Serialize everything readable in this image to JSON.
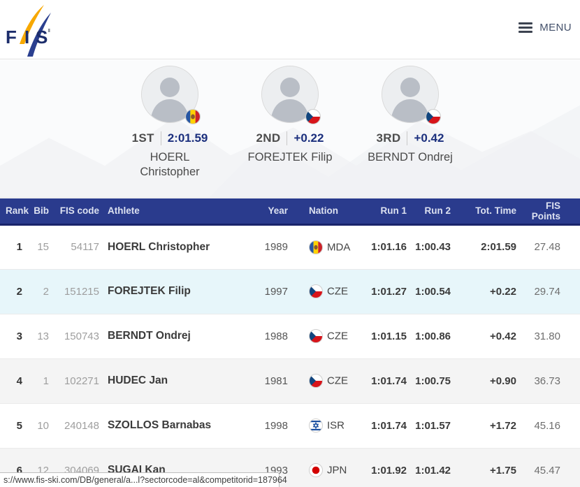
{
  "navbar": {
    "logo_text": "FIS",
    "menu_label": "MENU",
    "menu_icon": "hamburger-menu-icon"
  },
  "podium": [
    {
      "place": "1ST",
      "result": "2:01.59",
      "name_line1": "HOERL",
      "name_line2": "Christopher",
      "nation": "MDA"
    },
    {
      "place": "2ND",
      "result": "+0.22",
      "name_line1": "FOREJTEK Filip",
      "name_line2": "",
      "nation": "CZE"
    },
    {
      "place": "3RD",
      "result": "+0.42",
      "name_line1": "BERNDT Ondrej",
      "name_line2": "",
      "nation": "CZE"
    }
  ],
  "table": {
    "columns": [
      {
        "key": "rank",
        "label": "Rank"
      },
      {
        "key": "bib",
        "label": "Bib"
      },
      {
        "key": "fis_code",
        "label": "FIS code"
      },
      {
        "key": "athlete",
        "label": "Athlete"
      },
      {
        "key": "year",
        "label": "Year"
      },
      {
        "key": "nation",
        "label": "Nation"
      },
      {
        "key": "run1",
        "label": "Run 1"
      },
      {
        "key": "run2",
        "label": "Run 2"
      },
      {
        "key": "tot_time",
        "label": "Tot. Time"
      },
      {
        "key": "points",
        "label": "FIS Points"
      }
    ],
    "rows": [
      {
        "rank": "1",
        "bib": "15",
        "fis_code": "54117",
        "athlete": "HOERL Christopher",
        "year": "1989",
        "nation": "MDA",
        "run1": "1:01.16",
        "run2": "1:00.43",
        "tot_time": "2:01.59",
        "points": "27.48",
        "highlight": false
      },
      {
        "rank": "2",
        "bib": "2",
        "fis_code": "151215",
        "athlete": "FOREJTEK Filip",
        "year": "1997",
        "nation": "CZE",
        "run1": "1:01.27",
        "run2": "1:00.54",
        "tot_time": "+0.22",
        "points": "29.74",
        "highlight": true
      },
      {
        "rank": "3",
        "bib": "13",
        "fis_code": "150743",
        "athlete": "BERNDT Ondrej",
        "year": "1988",
        "nation": "CZE",
        "run1": "1:01.15",
        "run2": "1:00.86",
        "tot_time": "+0.42",
        "points": "31.80",
        "highlight": false
      },
      {
        "rank": "4",
        "bib": "1",
        "fis_code": "102271",
        "athlete": "HUDEC Jan",
        "year": "1981",
        "nation": "CZE",
        "run1": "1:01.74",
        "run2": "1:00.75",
        "tot_time": "+0.90",
        "points": "36.73",
        "highlight": false
      },
      {
        "rank": "5",
        "bib": "10",
        "fis_code": "240148",
        "athlete": "SZOLLOS Barnabas",
        "year": "1998",
        "nation": "ISR",
        "run1": "1:01.74",
        "run2": "1:01.57",
        "tot_time": "+1.72",
        "points": "45.16",
        "highlight": false
      },
      {
        "rank": "6",
        "bib": "12",
        "fis_code": "304069",
        "athlete": "SUGAI Kan",
        "year": "1993",
        "nation": "JPN",
        "run1": "1:01.92",
        "run2": "1:01.42",
        "tot_time": "+1.75",
        "points": "45.47",
        "highlight": false
      }
    ]
  },
  "status_bar": {
    "url": "s://www.fis-ski.com/DB/general/a...l?sectorcode=al&competitorid=187964"
  },
  "colors": {
    "header_blue": "#2a3b8d",
    "header_border_navy": "#19246b",
    "result_navy": "#1b2f7d",
    "highlight_row": "#e7f6fa",
    "alt_row": "#f4f4f4",
    "logo_yellow": "#f7a800",
    "logo_blue": "#2a3f8f"
  }
}
